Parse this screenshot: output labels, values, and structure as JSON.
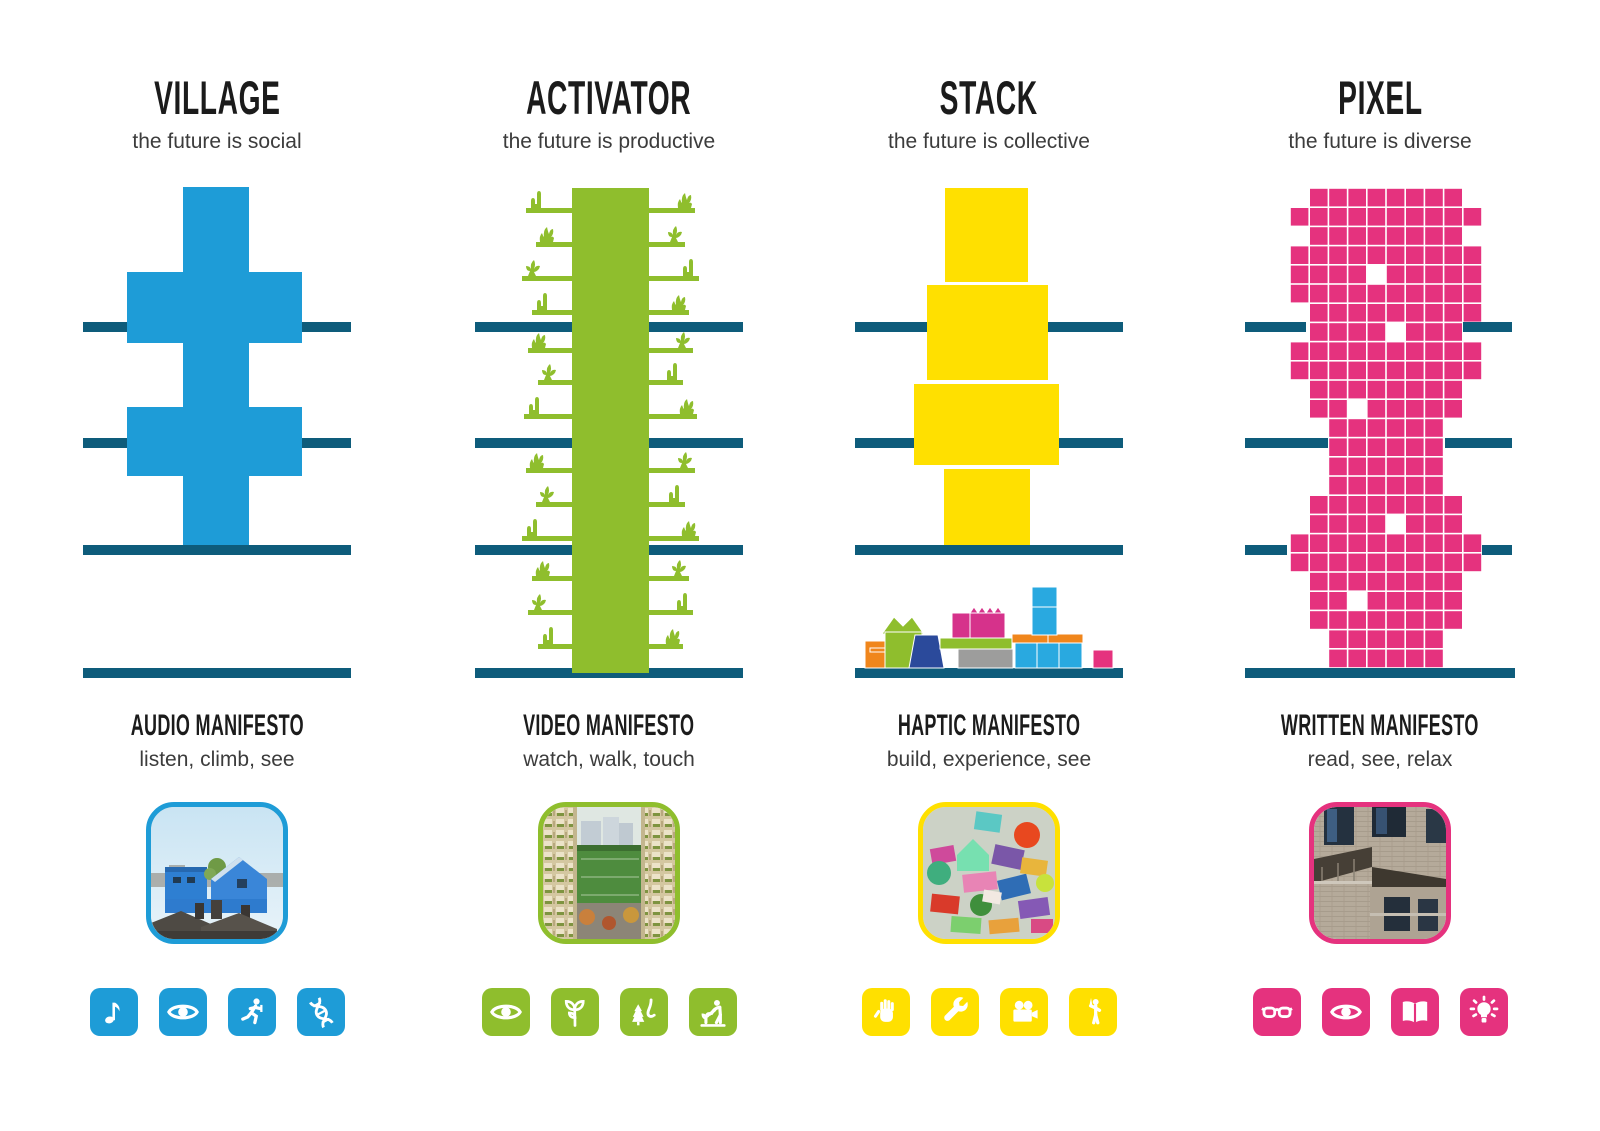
{
  "poster": {
    "background": "#ffffff"
  },
  "colors": {
    "teal": "#0E5C7B",
    "title_text": "#1b1b1b",
    "subtitle_text": "#3c3c3c",
    "toys": {
      "orange": "#F0861C",
      "lime": "#8FBE2D",
      "navy": "#2B4A9B",
      "sky": "#29A9E0",
      "gray": "#9D9D9C",
      "magenta": "#D6328B",
      "pink": "#E5327E"
    }
  },
  "columns": [
    {
      "id": "village",
      "title": "VILLAGE",
      "tagline": "the future is social",
      "accent": "#1E9CD7",
      "manifesto_title": "AUDIO MANIFESTO",
      "manifesto_subtitle": "listen, climb, see",
      "photo_subject": "blue rooftop village houses",
      "icons": [
        "music-note-icon",
        "eye-icon",
        "runner-icon",
        "dna-icon"
      ]
    },
    {
      "id": "activator",
      "title": "ACTIVATOR",
      "tagline": "the future is productive",
      "accent": "#8FBE2D",
      "manifesto_title": "VIDEO MANIFESTO",
      "manifesto_subtitle": "watch, walk, touch",
      "photo_subject": "green terraced towers over sports field",
      "icons": [
        "eye-icon",
        "sprout-icon",
        "tree-smell-icon",
        "gardener-icon"
      ]
    },
    {
      "id": "stack",
      "title": "STACK",
      "tagline": "the future is collective",
      "accent": "#FFE000",
      "manifesto_title": "HAPTIC MANIFESTO",
      "manifesto_subtitle": "build, experience, see",
      "photo_subject": "colorful toy building blocks sculpture",
      "icons": [
        "hand-icon",
        "wrench-icon",
        "movie-camera-icon",
        "presenter-icon"
      ]
    },
    {
      "id": "pixel",
      "title": "PIXEL",
      "tagline": "the future is diverse",
      "accent": "#E5327E",
      "manifesto_title": "WRITTEN MANIFESTO",
      "manifesto_subtitle": "read, see, relax",
      "photo_subject": "brick facade with balconies",
      "icons": [
        "glasses-icon",
        "eye-icon",
        "book-icon",
        "lightbulb-icon"
      ]
    }
  ],
  "pixel_grid": {
    "rows": [
      "0111111110",
      "1111111111",
      "0111111110",
      "1111111111",
      "1111011111",
      "1111111111",
      "0111111111",
      "0111101110",
      "1111111111",
      "1111111111",
      "0111111110",
      "0110111110",
      "0011111100",
      "0011111100",
      "0011111100",
      "0011111100",
      "0111111110",
      "0111101110",
      "1111111111",
      "1111111111",
      "0111111110",
      "0110111110",
      "0111111110",
      "0011111100",
      "0011111100"
    ]
  }
}
